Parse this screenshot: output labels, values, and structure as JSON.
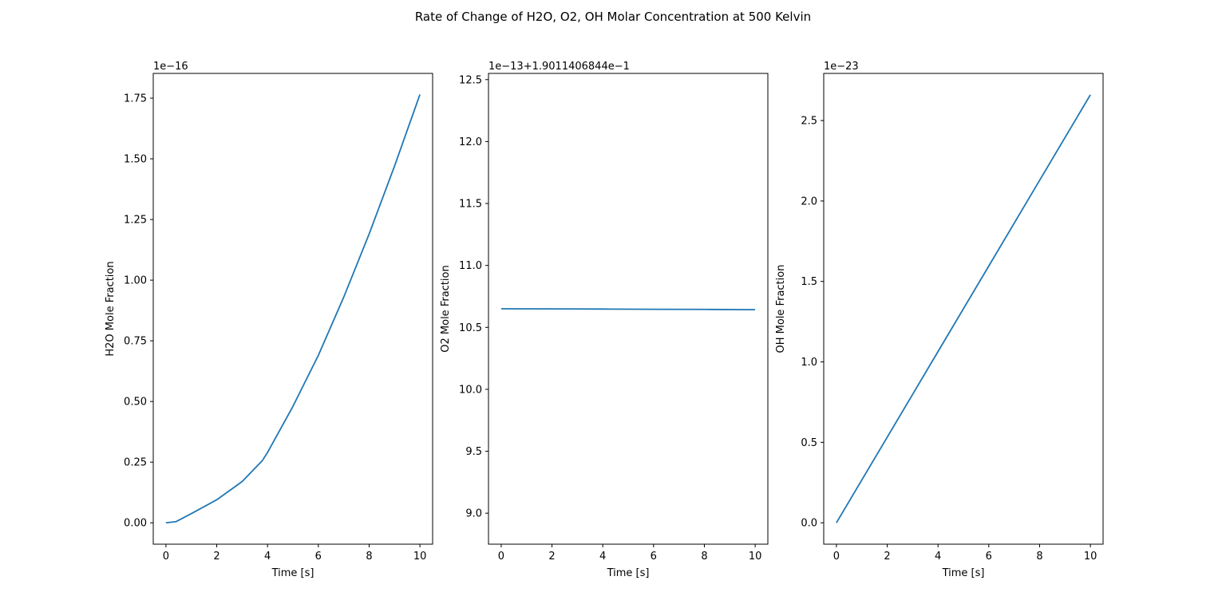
{
  "figure": {
    "title": "Rate of Change of H2O, O2, OH Molar Concentration at 500 Kelvin",
    "line_color": "#1f77b4"
  },
  "chart_data": [
    {
      "type": "line",
      "xlabel": "Time [s]",
      "ylabel": "H2O Mole Fraction",
      "offset_text": "1e−16",
      "xlim": [
        -0.5,
        10.5
      ],
      "ylim": [
        -0.088,
        1.852
      ],
      "xticks": [
        0,
        2,
        4,
        6,
        8,
        10
      ],
      "xtick_labels": [
        "0",
        "2",
        "4",
        "6",
        "8",
        "10"
      ],
      "yticks": [
        0.0,
        0.25,
        0.5,
        0.75,
        1.0,
        1.25,
        1.5,
        1.75
      ],
      "ytick_labels": [
        "0.00",
        "0.25",
        "0.50",
        "0.75",
        "1.00",
        "1.25",
        "1.50",
        "1.75"
      ],
      "grid": false,
      "series": [
        {
          "x": [
            0,
            0.4,
            1,
            2,
            3,
            3.8,
            4,
            5,
            6,
            7,
            8,
            9,
            10
          ],
          "values": [
            0.0,
            0.005,
            0.038,
            0.095,
            0.17,
            0.257,
            0.29,
            0.48,
            0.69,
            0.93,
            1.19,
            1.47,
            1.765
          ]
        }
      ]
    },
    {
      "type": "line",
      "xlabel": "Time [s]",
      "ylabel": "O2 Mole Fraction",
      "offset_text": "1e−13+1.9011406844e−1",
      "xlim": [
        -0.5,
        10.5
      ],
      "ylim": [
        8.75,
        12.55
      ],
      "xticks": [
        0,
        2,
        4,
        6,
        8,
        10
      ],
      "xtick_labels": [
        "0",
        "2",
        "4",
        "6",
        "8",
        "10"
      ],
      "yticks": [
        9.0,
        9.5,
        10.0,
        10.5,
        11.0,
        11.5,
        12.0,
        12.5
      ],
      "ytick_labels": [
        "9.0",
        "9.5",
        "10.0",
        "10.5",
        "11.0",
        "11.5",
        "12.0",
        "12.5"
      ],
      "grid": false,
      "series": [
        {
          "x": [
            0,
            2,
            4,
            6,
            8,
            10
          ],
          "values": [
            10.65,
            10.649,
            10.648,
            10.646,
            10.645,
            10.643
          ]
        }
      ]
    },
    {
      "type": "line",
      "xlabel": "Time [s]",
      "ylabel": "OH Mole Fraction",
      "offset_text": "1e−23",
      "xlim": [
        -0.5,
        10.5
      ],
      "ylim": [
        -0.133,
        2.793
      ],
      "xticks": [
        0,
        2,
        4,
        6,
        8,
        10
      ],
      "xtick_labels": [
        "0",
        "2",
        "4",
        "6",
        "8",
        "10"
      ],
      "yticks": [
        0.0,
        0.5,
        1.0,
        1.5,
        2.0,
        2.5
      ],
      "ytick_labels": [
        "0.0",
        "0.5",
        "1.0",
        "1.5",
        "2.0",
        "2.5"
      ],
      "grid": false,
      "series": [
        {
          "x": [
            0,
            2,
            4,
            6,
            8,
            10
          ],
          "values": [
            0.0,
            0.532,
            1.064,
            1.596,
            2.128,
            2.66
          ]
        }
      ]
    }
  ]
}
